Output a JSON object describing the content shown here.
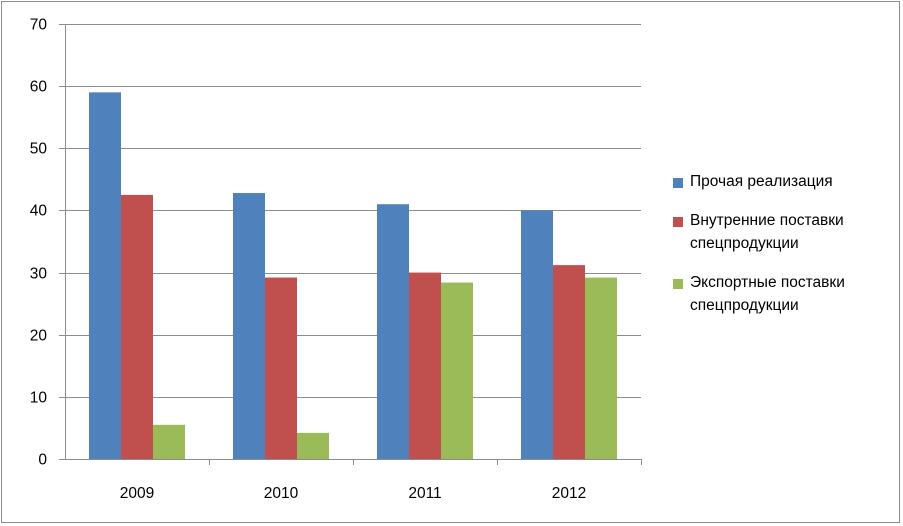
{
  "chart_data": {
    "type": "bar",
    "categories": [
      "2009",
      "2010",
      "2011",
      "2012"
    ],
    "series": [
      {
        "name": "Прочая реализация",
        "color": "#4f81bd",
        "values": [
          59,
          42.8,
          41,
          40
        ]
      },
      {
        "name": "Внутренние поставки спецпродукции",
        "color": "#c0504d",
        "values": [
          42.5,
          29.2,
          30,
          31.2
        ]
      },
      {
        "name": "Экспортные поставки спецпродукции",
        "color": "#9bbb59",
        "values": [
          5.5,
          4.2,
          28.4,
          29.2
        ]
      }
    ],
    "ylim": [
      0,
      70
    ],
    "yticks": [
      "0",
      "10",
      "20",
      "30",
      "40",
      "50",
      "60",
      "70"
    ],
    "title": "",
    "xlabel": "",
    "ylabel": "",
    "grid": true,
    "legend_position": "right"
  }
}
